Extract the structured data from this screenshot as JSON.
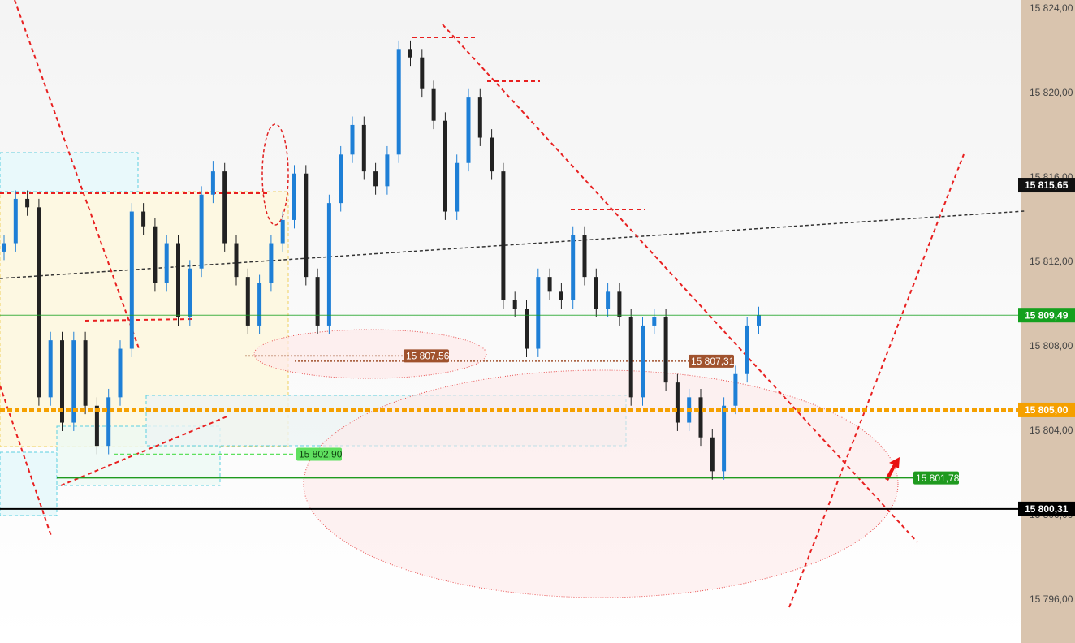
{
  "chart_data": {
    "type": "candlestick",
    "ylim": [
      15793.96,
      15824.42
    ],
    "yticks": [
      {
        "value": 15824,
        "label": "15 824,00"
      },
      {
        "value": 15820,
        "label": "15 820,00"
      },
      {
        "value": 15816,
        "label": "15 816,00"
      },
      {
        "value": 15812,
        "label": "15 812,00"
      },
      {
        "value": 15808,
        "label": "15 808,00"
      },
      {
        "value": 15804,
        "label": "15 804,00"
      },
      {
        "value": 15800,
        "label": "15 800,00"
      },
      {
        "value": 15796,
        "label": "15 796,00"
      }
    ],
    "up_color": "#1e7fd6",
    "down_color": "#222222",
    "open": [
      15812.5,
      15812.9,
      15815.0,
      15814.6,
      15805.6,
      15808.3,
      15804.4,
      15808.3,
      15805.2,
      15803.3,
      15805.6,
      15807.9,
      15814.4,
      15813.7,
      15811.0,
      15812.9,
      15809.4,
      15811.7,
      15815.2,
      15816.3,
      15812.9,
      15811.3,
      15809.0,
      15811.0,
      15812.9,
      15814.0,
      15816.2,
      15811.3,
      15809.0,
      15814.8,
      15817.1,
      15818.5,
      15816.3,
      15815.6,
      15817.1,
      15822.1,
      15821.7,
      15820.2,
      15818.7,
      15814.4,
      15816.7,
      15819.8,
      15817.9,
      15816.3,
      15810.2,
      15809.8,
      15807.9,
      15811.3,
      15810.6,
      15810.2,
      15813.3,
      15811.3,
      15809.8,
      15810.6,
      15809.4,
      15805.6,
      15809.0,
      15809.4,
      15806.3,
      15804.4,
      15805.6,
      15803.7,
      15802.1,
      15805.2,
      15806.7,
      15809.0
    ],
    "high": [
      15813.3,
      15815.4,
      15815.4,
      15815.0,
      15808.7,
      15808.7,
      15808.7,
      15808.7,
      15805.6,
      15806.0,
      15808.3,
      15814.8,
      15814.8,
      15814.1,
      15813.3,
      15813.3,
      15812.1,
      15815.6,
      15816.8,
      15816.7,
      15813.3,
      15811.7,
      15811.4,
      15813.3,
      15814.4,
      15816.6,
      15816.6,
      15811.7,
      15815.2,
      15817.5,
      15818.9,
      15818.9,
      15816.7,
      15817.5,
      15822.5,
      15822.5,
      15822.1,
      15820.6,
      15819.1,
      15817.1,
      15820.2,
      15820.2,
      15818.3,
      15816.7,
      15810.6,
      15810.2,
      15811.7,
      15811.7,
      15811.0,
      15813.7,
      15813.7,
      15811.7,
      15811.0,
      15811.0,
      15809.8,
      15809.4,
      15809.8,
      15809.8,
      15806.7,
      15806.0,
      15806.0,
      15804.1,
      15805.6,
      15807.1,
      15809.4,
      15809.89
    ],
    "low": [
      15812.1,
      15812.5,
      15814.2,
      15805.2,
      15805.2,
      15804.0,
      15804.0,
      15804.8,
      15802.9,
      15802.9,
      15805.2,
      15807.5,
      15813.3,
      15810.6,
      15810.6,
      15809.0,
      15809.0,
      15811.3,
      15814.8,
      15812.5,
      15810.9,
      15808.6,
      15808.6,
      15810.6,
      15812.5,
      15813.6,
      15810.9,
      15808.6,
      15808.6,
      15814.4,
      15816.7,
      15815.9,
      15815.2,
      15815.2,
      15816.7,
      15821.3,
      15819.8,
      15818.3,
      15814.0,
      15814.0,
      15816.3,
      15817.5,
      15815.9,
      15809.8,
      15809.4,
      15807.5,
      15807.5,
      15810.2,
      15809.8,
      15809.8,
      15810.9,
      15809.4,
      15809.4,
      15809.0,
      15805.2,
      15805.2,
      15808.6,
      15805.9,
      15804.0,
      15804.0,
      15803.3,
      15801.7,
      15801.7,
      15804.8,
      15806.3,
      15808.6
    ],
    "close": [
      15812.9,
      15815.0,
      15814.6,
      15805.6,
      15808.3,
      15804.4,
      15808.3,
      15805.2,
      15803.3,
      15805.6,
      15807.9,
      15814.4,
      15813.7,
      15811.0,
      15812.9,
      15809.4,
      15811.7,
      15815.2,
      15816.3,
      15812.9,
      15811.3,
      15809.0,
      15811.0,
      15812.9,
      15814.0,
      15816.2,
      15811.3,
      15809.0,
      15814.8,
      15817.1,
      15818.5,
      15816.3,
      15815.6,
      15817.1,
      15822.1,
      15821.7,
      15820.2,
      15818.7,
      15814.4,
      15816.7,
      15819.8,
      15817.9,
      15816.3,
      15810.2,
      15809.8,
      15807.9,
      15811.3,
      15810.6,
      15810.2,
      15813.3,
      15811.3,
      15809.8,
      15810.6,
      15809.4,
      15805.6,
      15809.0,
      15809.4,
      15806.3,
      15804.4,
      15805.6,
      15803.7,
      15802.1,
      15805.2,
      15806.7,
      15809.0,
      15809.49
    ],
    "axis_tags": [
      {
        "value": 15815.65,
        "label": "15 815,65",
        "color": "#111111",
        "line": "none"
      },
      {
        "value": 15809.49,
        "label": "15 809,49",
        "color": "#14a01e",
        "line": "solid"
      },
      {
        "value": 15805,
        "label": "15 805,00",
        "color": "#f5a000",
        "line": "dashed"
      },
      {
        "value": 15800.31,
        "label": "15 800,31",
        "color": "#000000",
        "line": "solid"
      }
    ],
    "levels": [
      {
        "value": 15807.56,
        "label": "15 807,56",
        "color": "#a0522d",
        "text_color": "#ffffff"
      },
      {
        "value": 15807.31,
        "label": "15 807,31",
        "color": "#a0522d",
        "text_color": "#ffffff"
      },
      {
        "value": 15802.9,
        "label": "15 802,90",
        "color": "#5fe05f",
        "text_color": "#114411"
      },
      {
        "value": 15801.78,
        "label": "15 801,78",
        "color": "#1f9a1f",
        "text_color": "#ffffff"
      }
    ]
  }
}
